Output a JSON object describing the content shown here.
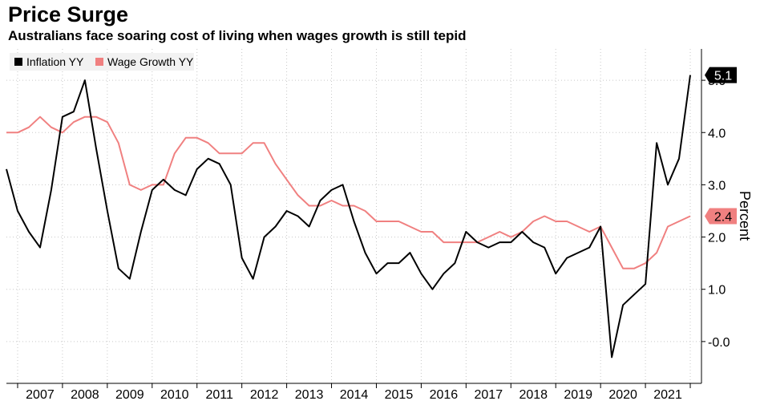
{
  "chart_data": {
    "type": "line",
    "title": "Price Surge",
    "subtitle": "Australians face soaring cost of living when wages growth is still tepid",
    "xlabel": "",
    "ylabel": "Percent",
    "ylim": [
      -0.8,
      5.6
    ],
    "y_ticks": [
      "-0.0",
      "1.0",
      "2.0",
      "3.0",
      "4.0",
      "5.0"
    ],
    "x_ticks": [
      "2007",
      "2008",
      "2009",
      "2010",
      "2011",
      "2012",
      "2013",
      "2014",
      "2015",
      "2016",
      "2017",
      "2018",
      "2019",
      "2020",
      "2021"
    ],
    "x_range": [
      2006.75,
      2022.25
    ],
    "legend_position": "top-left",
    "grid": true,
    "series": [
      {
        "name": "Inflation YY",
        "color": "#000000",
        "last_label": "5.1",
        "x": [
          2006.75,
          2007.0,
          2007.25,
          2007.5,
          2007.75,
          2008.0,
          2008.25,
          2008.5,
          2008.75,
          2009.0,
          2009.25,
          2009.5,
          2009.75,
          2010.0,
          2010.25,
          2010.5,
          2010.75,
          2011.0,
          2011.25,
          2011.5,
          2011.75,
          2012.0,
          2012.25,
          2012.5,
          2012.75,
          2013.0,
          2013.25,
          2013.5,
          2013.75,
          2014.0,
          2014.25,
          2014.5,
          2014.75,
          2015.0,
          2015.25,
          2015.5,
          2015.75,
          2016.0,
          2016.25,
          2016.5,
          2016.75,
          2017.0,
          2017.25,
          2017.5,
          2017.75,
          2018.0,
          2018.25,
          2018.5,
          2018.75,
          2019.0,
          2019.25,
          2019.5,
          2019.75,
          2020.0,
          2020.25,
          2020.5,
          2020.75,
          2021.0,
          2021.25,
          2021.5,
          2021.75,
          2022.0
        ],
        "values": [
          3.3,
          2.5,
          2.1,
          1.8,
          2.9,
          4.3,
          4.4,
          5.0,
          3.7,
          2.5,
          1.4,
          1.2,
          2.1,
          2.9,
          3.1,
          2.9,
          2.8,
          3.3,
          3.5,
          3.4,
          3.0,
          1.6,
          1.2,
          2.0,
          2.2,
          2.5,
          2.4,
          2.2,
          2.7,
          2.9,
          3.0,
          2.3,
          1.7,
          1.3,
          1.5,
          1.5,
          1.7,
          1.3,
          1.0,
          1.3,
          1.5,
          2.1,
          1.9,
          1.8,
          1.9,
          1.9,
          2.1,
          1.9,
          1.8,
          1.3,
          1.6,
          1.7,
          1.8,
          2.2,
          -0.3,
          0.7,
          0.9,
          1.1,
          3.8,
          3.0,
          3.5,
          5.1
        ]
      },
      {
        "name": "Wage Growth YY",
        "color": "#f08080",
        "last_label": "2.4",
        "x": [
          2006.75,
          2007.0,
          2007.25,
          2007.5,
          2007.75,
          2008.0,
          2008.25,
          2008.5,
          2008.75,
          2009.0,
          2009.25,
          2009.5,
          2009.75,
          2010.0,
          2010.25,
          2010.5,
          2010.75,
          2011.0,
          2011.25,
          2011.5,
          2011.75,
          2012.0,
          2012.25,
          2012.5,
          2012.75,
          2013.0,
          2013.25,
          2013.5,
          2013.75,
          2014.0,
          2014.25,
          2014.5,
          2014.75,
          2015.0,
          2015.25,
          2015.5,
          2015.75,
          2016.0,
          2016.25,
          2016.5,
          2016.75,
          2017.0,
          2017.25,
          2017.5,
          2017.75,
          2018.0,
          2018.25,
          2018.5,
          2018.75,
          2019.0,
          2019.25,
          2019.5,
          2019.75,
          2020.0,
          2020.25,
          2020.5,
          2020.75,
          2021.0,
          2021.25,
          2021.5,
          2021.75,
          2022.0
        ],
        "values": [
          4.0,
          4.0,
          4.1,
          4.3,
          4.1,
          4.0,
          4.2,
          4.3,
          4.3,
          4.2,
          3.8,
          3.0,
          2.9,
          3.0,
          3.0,
          3.6,
          3.9,
          3.9,
          3.8,
          3.6,
          3.6,
          3.6,
          3.8,
          3.8,
          3.4,
          3.1,
          2.8,
          2.6,
          2.6,
          2.7,
          2.6,
          2.6,
          2.5,
          2.3,
          2.3,
          2.3,
          2.2,
          2.1,
          2.1,
          1.9,
          1.9,
          1.9,
          1.9,
          2.0,
          2.1,
          2.0,
          2.1,
          2.3,
          2.4,
          2.3,
          2.3,
          2.2,
          2.1,
          2.2,
          1.8,
          1.4,
          1.4,
          1.5,
          1.7,
          2.2,
          2.3,
          2.4
        ]
      }
    ]
  }
}
